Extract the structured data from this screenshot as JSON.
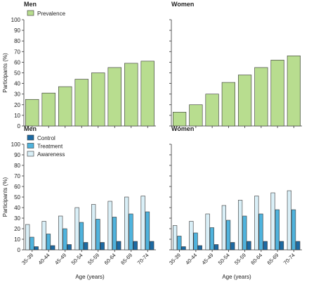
{
  "colors": {
    "prevalence": "#b8dd8f",
    "control": "#1c6aa3",
    "treatment": "#4fb3dd",
    "awareness": "#d9eff7",
    "stroke": "#333333"
  },
  "chart_data": [
    {
      "type": "bar",
      "panel": "top-left",
      "title": "Men",
      "categories": [
        "35-39",
        "40-44",
        "45-49",
        "50-54",
        "55-59",
        "60-64",
        "65-69",
        "70-74"
      ],
      "series": [
        {
          "name": "Prevalence",
          "values": [
            25,
            31,
            37,
            44,
            50,
            55,
            59,
            61
          ]
        }
      ],
      "ylabel": "Participants (%)",
      "xlabel": "",
      "ylim": [
        0,
        100
      ],
      "yticks": [
        "0",
        "10",
        "20",
        "30",
        "40",
        "50",
        "60",
        "70",
        "80",
        "90",
        "100"
      ],
      "legend": "top-left",
      "show_x_ticklabels": false
    },
    {
      "type": "bar",
      "panel": "top-right",
      "title": "Women",
      "categories": [
        "35-39",
        "40-44",
        "45-49",
        "50-54",
        "55-59",
        "60-64",
        "65-69",
        "70-74"
      ],
      "series": [
        {
          "name": "Prevalence",
          "values": [
            13,
            20,
            30,
            41,
            48,
            55,
            62,
            66
          ]
        }
      ],
      "ylabel": "",
      "xlabel": "",
      "ylim": [
        0,
        100
      ],
      "show_x_ticklabels": false
    },
    {
      "type": "bar",
      "panel": "bottom-left",
      "title": "Men",
      "categories": [
        "35-39",
        "40-44",
        "45-49",
        "50-54",
        "55-59",
        "60-64",
        "65-69",
        "70-74"
      ],
      "series": [
        {
          "name": "Awareness",
          "values": [
            24,
            27,
            32,
            40,
            43,
            46,
            50,
            51
          ]
        },
        {
          "name": "Treatment",
          "values": [
            12,
            15,
            20,
            26,
            29,
            31,
            34,
            36
          ]
        },
        {
          "name": "Control",
          "values": [
            3,
            4,
            5,
            7,
            7,
            8,
            8,
            8
          ]
        }
      ],
      "ylabel": "Participants (%)",
      "xlabel": "Age (years)",
      "ylim": [
        0,
        100
      ],
      "yticks": [
        "0",
        "10",
        "20",
        "30",
        "40",
        "50",
        "60",
        "70",
        "80",
        "90",
        "100"
      ],
      "legend": "top-left",
      "legend_order": [
        "Control",
        "Treatment",
        "Awareness"
      ],
      "show_x_ticklabels": true
    },
    {
      "type": "bar",
      "panel": "bottom-right",
      "title": "Women",
      "categories": [
        "35-39",
        "40-44",
        "45-49",
        "50-54",
        "55-59",
        "60-64",
        "65-69",
        "70-74"
      ],
      "series": [
        {
          "name": "Awareness",
          "values": [
            23,
            27,
            34,
            42,
            47,
            51,
            54,
            56
          ]
        },
        {
          "name": "Treatment",
          "values": [
            13,
            16,
            21,
            28,
            32,
            34,
            38,
            38
          ]
        },
        {
          "name": "Control",
          "values": [
            3,
            4,
            5,
            7,
            8,
            8,
            8,
            8
          ]
        }
      ],
      "ylabel": "",
      "xlabel": "Age (years)",
      "ylim": [
        0,
        100
      ],
      "show_x_ticklabels": true
    }
  ]
}
